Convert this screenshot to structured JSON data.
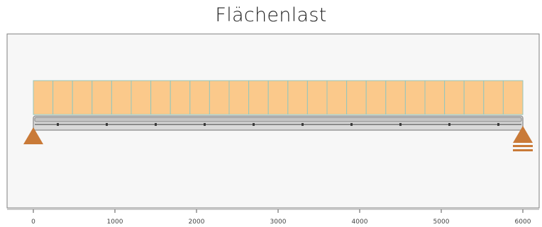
{
  "title": "Flächenlast",
  "axis": {
    "min": 0,
    "max": 6000,
    "ticks": [
      "0",
      "1000",
      "2000",
      "3000",
      "4000",
      "5000",
      "6000"
    ]
  },
  "load": {
    "segments": 25,
    "fill_color": "#fbc98b",
    "stroke_color": "#94c7bd"
  },
  "beam": {
    "length": 6000,
    "markers": [
      300,
      900,
      1500,
      2100,
      2700,
      3300,
      3900,
      4500,
      5100,
      5700
    ]
  },
  "supports": {
    "left": {
      "type": "pinned",
      "position": 0
    },
    "right": {
      "type": "roller",
      "position": 6000
    },
    "color": "#c97a38"
  },
  "colors": {
    "plot_bg": "#f7f7f7",
    "frame": "#7f7f7f",
    "beam_outer": "#9a9a9a",
    "beam_inner": "#d9d9d9"
  }
}
